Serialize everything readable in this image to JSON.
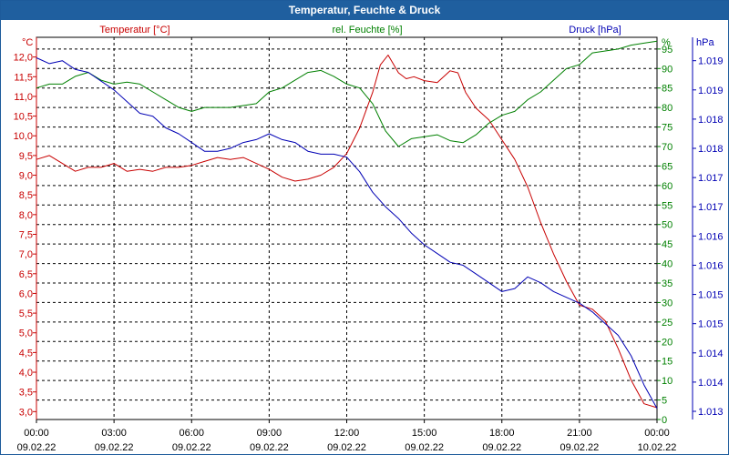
{
  "window": {
    "title": "Temperatur, Feuchte & Druck"
  },
  "colors": {
    "temperature": "#c80000",
    "humidity": "#008000",
    "pressure": "#0000b4",
    "grid": "#000000",
    "title_bar": "#1f5f9f"
  },
  "chart_data": {
    "type": "line",
    "title": "Temperatur, Feuchte & Druck",
    "x": {
      "unit": "hours since 09.02.22 00:00",
      "range": [
        0,
        24
      ],
      "ticks": [
        {
          "value": 0,
          "time": "00:00",
          "date": "09.02.22"
        },
        {
          "value": 3,
          "time": "03:00",
          "date": "09.02.22"
        },
        {
          "value": 6,
          "time": "06:00",
          "date": "09.02.22"
        },
        {
          "value": 9,
          "time": "09:00",
          "date": "09.02.22"
        },
        {
          "value": 12,
          "time": "12:00",
          "date": "09.02.22"
        },
        {
          "value": 15,
          "time": "15:00",
          "date": "09.02.22"
        },
        {
          "value": 18,
          "time": "18:00",
          "date": "09.02.22"
        },
        {
          "value": 21,
          "time": "21:00",
          "date": "09.02.22"
        },
        {
          "value": 24,
          "time": "00:00",
          "date": "10.02.22"
        }
      ]
    },
    "axes": {
      "temperature": {
        "label": "Temperatur [°C]",
        "unit": "°C",
        "range": [
          2.8,
          12.5
        ],
        "tick_labels": [
          "3,0",
          "3,5",
          "4,0",
          "4,5",
          "5,0",
          "5,5",
          "6,0",
          "6,5",
          "7,0",
          "7,5",
          "8,0",
          "8,5",
          "9,0",
          "9,5",
          "10,0",
          "10,5",
          "11,0",
          "11,5",
          "12,0"
        ]
      },
      "humidity": {
        "label": "rel. Feuchte [%]",
        "unit": "%",
        "range": [
          0,
          98
        ],
        "tick_labels": [
          "0",
          "5",
          "10",
          "15",
          "20",
          "25",
          "30",
          "35",
          "40",
          "45",
          "50",
          "55",
          "60",
          "65",
          "70",
          "75",
          "80",
          "85",
          "90",
          "95"
        ]
      },
      "pressure": {
        "label": "Druck [hPa]",
        "unit": "hPa",
        "tick_labels": [
          "1.013",
          "1.014",
          "1.014",
          "1.015",
          "1.015",
          "1.016",
          "1.016",
          "1.017",
          "1.017",
          "1.018",
          "1.018",
          "1.019",
          "1.019"
        ],
        "tick_values": [
          1013.0,
          1013.5,
          1014.0,
          1014.5,
          1015.0,
          1015.5,
          1016.0,
          1016.5,
          1017.0,
          1017.5,
          1018.0,
          1018.5,
          1019.0
        ],
        "range": [
          1012.86,
          1019.4
        ]
      }
    },
    "series": [
      {
        "name": "Temperatur [°C]",
        "axis": "temperature",
        "points": [
          [
            0,
            9.4
          ],
          [
            0.5,
            9.5
          ],
          [
            1,
            9.3
          ],
          [
            1.5,
            9.1
          ],
          [
            2,
            9.2
          ],
          [
            2.5,
            9.2
          ],
          [
            3,
            9.3
          ],
          [
            3.5,
            9.1
          ],
          [
            4,
            9.15
          ],
          [
            4.5,
            9.1
          ],
          [
            5,
            9.2
          ],
          [
            5.5,
            9.2
          ],
          [
            6,
            9.25
          ],
          [
            6.5,
            9.35
          ],
          [
            7,
            9.45
          ],
          [
            7.5,
            9.4
          ],
          [
            8,
            9.45
          ],
          [
            8.5,
            9.3
          ],
          [
            9,
            9.15
          ],
          [
            9.5,
            8.95
          ],
          [
            10,
            8.85
          ],
          [
            10.5,
            8.9
          ],
          [
            11,
            9.0
          ],
          [
            11.5,
            9.2
          ],
          [
            12,
            9.55
          ],
          [
            12.5,
            10.2
          ],
          [
            13,
            11.1
          ],
          [
            13.3,
            11.8
          ],
          [
            13.6,
            12.05
          ],
          [
            14,
            11.6
          ],
          [
            14.3,
            11.45
          ],
          [
            14.6,
            11.5
          ],
          [
            15,
            11.4
          ],
          [
            15.5,
            11.35
          ],
          [
            16,
            11.65
          ],
          [
            16.3,
            11.6
          ],
          [
            16.6,
            11.1
          ],
          [
            17,
            10.7
          ],
          [
            17.5,
            10.4
          ],
          [
            18,
            9.9
          ],
          [
            18.5,
            9.4
          ],
          [
            19,
            8.7
          ],
          [
            19.5,
            7.8
          ],
          [
            20,
            7.0
          ],
          [
            20.5,
            6.3
          ],
          [
            21,
            5.7
          ],
          [
            21.5,
            5.6
          ],
          [
            22,
            5.3
          ],
          [
            22.5,
            4.6
          ],
          [
            23,
            3.8
          ],
          [
            23.5,
            3.2
          ],
          [
            24,
            3.1
          ]
        ]
      },
      {
        "name": "rel. Feuchte [%]",
        "axis": "humidity",
        "points": [
          [
            0,
            85
          ],
          [
            0.5,
            86
          ],
          [
            1,
            86
          ],
          [
            1.5,
            88
          ],
          [
            2,
            89
          ],
          [
            2.5,
            87
          ],
          [
            3,
            86
          ],
          [
            3.5,
            86.5
          ],
          [
            4,
            86
          ],
          [
            4.5,
            84
          ],
          [
            5,
            82
          ],
          [
            5.5,
            80
          ],
          [
            6,
            79
          ],
          [
            6.5,
            80
          ],
          [
            7,
            80
          ],
          [
            7.5,
            80
          ],
          [
            8,
            80.5
          ],
          [
            8.5,
            81
          ],
          [
            9,
            84
          ],
          [
            9.5,
            85
          ],
          [
            10,
            87
          ],
          [
            10.5,
            89
          ],
          [
            11,
            89.5
          ],
          [
            11.5,
            88
          ],
          [
            12,
            86
          ],
          [
            12.5,
            85
          ],
          [
            13,
            81
          ],
          [
            13.5,
            74
          ],
          [
            14,
            70
          ],
          [
            14.5,
            72
          ],
          [
            15,
            72.5
          ],
          [
            15.5,
            73
          ],
          [
            16,
            71.5
          ],
          [
            16.5,
            71
          ],
          [
            17,
            73
          ],
          [
            17.5,
            76
          ],
          [
            18,
            78
          ],
          [
            18.5,
            79
          ],
          [
            19,
            82
          ],
          [
            19.5,
            84
          ],
          [
            20,
            87
          ],
          [
            20.5,
            90
          ],
          [
            21,
            91
          ],
          [
            21.5,
            94
          ],
          [
            22,
            94.5
          ],
          [
            22.5,
            95
          ],
          [
            23,
            96
          ],
          [
            23.5,
            96.5
          ],
          [
            24,
            97
          ]
        ]
      },
      {
        "name": "Druck [hPa]",
        "axis": "pressure",
        "points": [
          [
            0,
            1019.05
          ],
          [
            0.5,
            1018.95
          ],
          [
            1,
            1019.0
          ],
          [
            1.5,
            1018.85
          ],
          [
            2,
            1018.8
          ],
          [
            3,
            1018.5
          ],
          [
            3.5,
            1018.3
          ],
          [
            4,
            1018.1
          ],
          [
            4.5,
            1018.05
          ],
          [
            5,
            1017.85
          ],
          [
            5.5,
            1017.75
          ],
          [
            6,
            1017.6
          ],
          [
            6.5,
            1017.45
          ],
          [
            7,
            1017.45
          ],
          [
            7.5,
            1017.5
          ],
          [
            8,
            1017.6
          ],
          [
            8.5,
            1017.65
          ],
          [
            9,
            1017.75
          ],
          [
            9.5,
            1017.65
          ],
          [
            10,
            1017.6
          ],
          [
            10.5,
            1017.45
          ],
          [
            11,
            1017.4
          ],
          [
            11.5,
            1017.4
          ],
          [
            12,
            1017.35
          ],
          [
            12.5,
            1017.1
          ],
          [
            13,
            1016.75
          ],
          [
            13.5,
            1016.5
          ],
          [
            14,
            1016.3
          ],
          [
            14.5,
            1016.05
          ],
          [
            15,
            1015.85
          ],
          [
            15.5,
            1015.7
          ],
          [
            16,
            1015.55
          ],
          [
            16.5,
            1015.5
          ],
          [
            17,
            1015.35
          ],
          [
            17.5,
            1015.2
          ],
          [
            18,
            1015.05
          ],
          [
            18.5,
            1015.1
          ],
          [
            19,
            1015.3
          ],
          [
            19.5,
            1015.2
          ],
          [
            20,
            1015.05
          ],
          [
            20.5,
            1014.95
          ],
          [
            21,
            1014.85
          ],
          [
            21.5,
            1014.7
          ],
          [
            22,
            1014.5
          ],
          [
            22.5,
            1014.3
          ],
          [
            23,
            1013.95
          ],
          [
            23.5,
            1013.45
          ],
          [
            24,
            1013.05
          ]
        ]
      }
    ]
  }
}
